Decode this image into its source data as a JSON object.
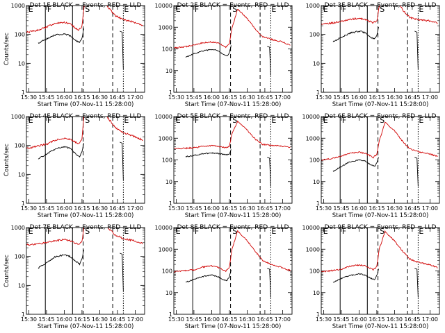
{
  "figure": {
    "layout": "3x3 grid",
    "background": "#ffffff"
  },
  "colors": {
    "events": "#000000",
    "lld": "#d00000",
    "axes": "#000000"
  },
  "chart_data": [
    {
      "type": "line",
      "title": "Det 1F BLACK = Events, RED = LLD",
      "xlabel": "Start Time (07-Nov-11 15:28:00)",
      "ylabel": "Counts/sec",
      "yscale": "log",
      "ylim": [
        1,
        1000
      ],
      "yticks": [
        "1",
        "10",
        "100",
        "1000"
      ],
      "xticks": [
        "15:30",
        "15:45",
        "16:00",
        "16:15",
        "16:30",
        "16:45",
        "17:00"
      ],
      "flags": [
        "E",
        "F",
        "S",
        "E"
      ]
    },
    {
      "type": "line",
      "title": "Det 2F BLACK = Events, RED = LLD",
      "xlabel": "Start Time (07-Nov-11 15:28:00)",
      "ylabel": "",
      "yscale": "log",
      "ylim": [
        1,
        10000
      ],
      "yticks": [
        "1",
        "10",
        "100",
        "1000",
        "10000"
      ],
      "xticks": [
        "15:30",
        "15:45",
        "16:00",
        "16:15",
        "16:30",
        "16:45",
        "17:00"
      ],
      "flags": [
        "E",
        "F",
        "S",
        "E"
      ]
    },
    {
      "type": "line",
      "title": "Det 3F BLACK = Events, RED = LLD",
      "xlabel": "Start Time (07-Nov-11 15:28:00)",
      "ylabel": "",
      "yscale": "log",
      "ylim": [
        1,
        1000
      ],
      "yticks": [
        "1",
        "10",
        "100",
        "1000"
      ],
      "xticks": [
        "15:30",
        "15:45",
        "16:00",
        "16:15",
        "16:30",
        "16:45",
        "17:00"
      ],
      "flags": [
        "E",
        "F",
        "S",
        "E"
      ]
    },
    {
      "type": "line",
      "title": "Det 4F BLACK = Events, RED = LLD",
      "xlabel": "Start Time (07-Nov-11 15:28:00)",
      "ylabel": "Counts/sec",
      "yscale": "log",
      "ylim": [
        1,
        1000
      ],
      "yticks": [
        "1",
        "10",
        "100",
        "1000"
      ],
      "xticks": [
        "15:30",
        "15:45",
        "16:00",
        "16:15",
        "16:30",
        "16:45",
        "17:00"
      ],
      "flags": [
        "E",
        "F",
        "S",
        "E"
      ]
    },
    {
      "type": "line",
      "title": "Det 5F BLACK = Events, RED = LLD",
      "xlabel": "Start Time (07-Nov-11 15:28:00)",
      "ylabel": "",
      "yscale": "log",
      "ylim": [
        1,
        10000
      ],
      "yticks": [
        "1",
        "10",
        "100",
        "1000",
        "10000"
      ],
      "xticks": [
        "15:30",
        "15:45",
        "16:00",
        "16:15",
        "16:30",
        "16:45",
        "17:00"
      ],
      "flags": [
        "E",
        "F",
        "S",
        "E"
      ]
    },
    {
      "type": "line",
      "title": "Det 6F BLACK = Events, RED = LLD",
      "xlabel": "Start Time (07-Nov-11 15:28:00)",
      "ylabel": "",
      "yscale": "log",
      "ylim": [
        1,
        10000
      ],
      "yticks": [
        "1",
        "10",
        "100",
        "1000",
        "10000"
      ],
      "xticks": [
        "15:30",
        "15:45",
        "16:00",
        "16:15",
        "16:30",
        "16:45",
        "17:00"
      ],
      "flags": [
        "E",
        "F",
        "S",
        "E"
      ]
    },
    {
      "type": "line",
      "title": "Det 7F BLACK = Events, RED = LLD",
      "xlabel": "Start Time (07-Nov-11 15:28:00)",
      "ylabel": "Counts/sec",
      "yscale": "log",
      "ylim": [
        1,
        1000
      ],
      "yticks": [
        "1",
        "10",
        "100",
        "1000"
      ],
      "xticks": [
        "15:30",
        "15:45",
        "16:00",
        "16:15",
        "16:30",
        "16:45",
        "17:00"
      ],
      "flags": [
        "E",
        "F",
        "S",
        "E"
      ]
    },
    {
      "type": "line",
      "title": "Det 8F BLACK = Events, RED = LLD",
      "xlabel": "Start Time (07-Nov-11 15:28:00)",
      "ylabel": "",
      "yscale": "log",
      "ylim": [
        1,
        10000
      ],
      "yticks": [
        "1",
        "10",
        "100",
        "1000",
        "10000"
      ],
      "xticks": [
        "15:30",
        "15:45",
        "16:00",
        "16:15",
        "16:30",
        "16:45",
        "17:00"
      ],
      "flags": [
        "E",
        "F",
        "S",
        "E"
      ]
    },
    {
      "type": "line",
      "title": "Det 9F BLACK = Events, RED = LLD",
      "xlabel": "Start Time (07-Nov-11 15:28:00)",
      "ylabel": "",
      "yscale": "log",
      "ylim": [
        1,
        10000
      ],
      "yticks": [
        "1",
        "10",
        "100",
        "1000",
        "10000"
      ],
      "xticks": [
        "15:30",
        "15:45",
        "16:00",
        "16:15",
        "16:30",
        "16:45",
        "17:00"
      ],
      "flags": [
        "E",
        "F",
        "S",
        "E"
      ]
    }
  ],
  "series_shapes": {
    "red": [
      [
        [
          "15:28",
          120
        ],
        [
          "15:35",
          130
        ],
        [
          "15:45",
          180
        ],
        [
          "15:52",
          240
        ],
        [
          "16:00",
          260
        ],
        [
          "16:05",
          230
        ],
        [
          "16:10",
          160
        ],
        [
          "16:12",
          140
        ],
        [
          "16:15",
          190
        ],
        [
          "16:17",
          1200
        ],
        [
          "16:22",
          8000
        ],
        [
          "16:30",
          3000
        ],
        [
          "16:37",
          900
        ],
        [
          "16:43",
          450
        ],
        [
          "16:50",
          330
        ],
        [
          "17:00",
          260
        ],
        [
          "17:07",
          190
        ]
      ],
      [
        [
          "15:28",
          110
        ],
        [
          "15:35",
          120
        ],
        [
          "15:45",
          150
        ],
        [
          "15:52",
          190
        ],
        [
          "16:00",
          210
        ],
        [
          "16:05",
          190
        ],
        [
          "16:10",
          140
        ],
        [
          "16:12",
          120
        ],
        [
          "16:15",
          170
        ],
        [
          "16:17",
          800
        ],
        [
          "16:22",
          7000
        ],
        [
          "16:30",
          2500
        ],
        [
          "16:37",
          800
        ],
        [
          "16:43",
          380
        ],
        [
          "16:50",
          280
        ],
        [
          "17:00",
          210
        ],
        [
          "17:07",
          140
        ]
      ],
      [
        [
          "15:28",
          230
        ],
        [
          "15:35",
          240
        ],
        [
          "15:45",
          280
        ],
        [
          "15:52",
          330
        ],
        [
          "16:00",
          360
        ],
        [
          "16:05",
          330
        ],
        [
          "16:10",
          270
        ],
        [
          "16:12",
          250
        ],
        [
          "16:15",
          300
        ],
        [
          "16:17",
          900
        ],
        [
          "16:22",
          6000
        ],
        [
          "16:30",
          2200
        ],
        [
          "16:37",
          700
        ],
        [
          "16:43",
          380
        ],
        [
          "16:50",
          330
        ],
        [
          "17:00",
          290
        ],
        [
          "17:07",
          240
        ]
      ],
      [
        [
          "15:28",
          80
        ],
        [
          "15:35",
          90
        ],
        [
          "15:45",
          110
        ],
        [
          "15:52",
          150
        ],
        [
          "16:00",
          180
        ],
        [
          "16:05",
          160
        ],
        [
          "16:10",
          130
        ],
        [
          "16:12",
          110
        ],
        [
          "16:15",
          170
        ],
        [
          "16:17",
          1500
        ],
        [
          "16:22",
          8000
        ],
        [
          "16:30",
          3200
        ],
        [
          "16:37",
          900
        ],
        [
          "16:43",
          420
        ],
        [
          "16:50",
          280
        ],
        [
          "17:00",
          200
        ],
        [
          "17:07",
          150
        ]
      ],
      [
        [
          "15:28",
          340
        ],
        [
          "15:35",
          340
        ],
        [
          "15:45",
          360
        ],
        [
          "15:52",
          420
        ],
        [
          "16:00",
          460
        ],
        [
          "16:05",
          420
        ],
        [
          "16:10",
          380
        ],
        [
          "16:12",
          360
        ],
        [
          "16:15",
          420
        ],
        [
          "16:17",
          1500
        ],
        [
          "16:22",
          6000
        ],
        [
          "16:30",
          2400
        ],
        [
          "16:37",
          900
        ],
        [
          "16:43",
          520
        ],
        [
          "16:50",
          470
        ],
        [
          "17:00",
          430
        ],
        [
          "17:07",
          380
        ]
      ],
      [
        [
          "15:28",
          100
        ],
        [
          "15:35",
          110
        ],
        [
          "15:45",
          150
        ],
        [
          "15:52",
          200
        ],
        [
          "16:00",
          230
        ],
        [
          "16:05",
          200
        ],
        [
          "16:10",
          150
        ],
        [
          "16:12",
          130
        ],
        [
          "16:15",
          180
        ],
        [
          "16:17",
          700
        ],
        [
          "16:22",
          5500
        ],
        [
          "16:30",
          2200
        ],
        [
          "16:37",
          700
        ],
        [
          "16:43",
          330
        ],
        [
          "16:50",
          240
        ],
        [
          "17:00",
          190
        ],
        [
          "17:07",
          140
        ]
      ],
      [
        [
          "15:28",
          260
        ],
        [
          "15:35",
          260
        ],
        [
          "15:45",
          300
        ],
        [
          "15:52",
          350
        ],
        [
          "16:00",
          380
        ],
        [
          "16:05",
          350
        ],
        [
          "16:10",
          280
        ],
        [
          "16:12",
          260
        ],
        [
          "16:15",
          320
        ],
        [
          "16:17",
          1500
        ],
        [
          "16:22",
          8000
        ],
        [
          "16:30",
          3000
        ],
        [
          "16:37",
          1000
        ],
        [
          "16:43",
          550
        ],
        [
          "16:50",
          420
        ],
        [
          "17:00",
          340
        ],
        [
          "17:07",
          280
        ]
      ],
      [
        [
          "15:28",
          90
        ],
        [
          "15:35",
          100
        ],
        [
          "15:45",
          110
        ],
        [
          "15:52",
          150
        ],
        [
          "16:00",
          170
        ],
        [
          "16:05",
          150
        ],
        [
          "16:10",
          110
        ],
        [
          "16:12",
          100
        ],
        [
          "16:15",
          150
        ],
        [
          "16:17",
          900
        ],
        [
          "16:22",
          7000
        ],
        [
          "16:30",
          2500
        ],
        [
          "16:37",
          800
        ],
        [
          "16:43",
          300
        ],
        [
          "16:50",
          200
        ],
        [
          "17:00",
          140
        ],
        [
          "17:07",
          100
        ]
      ],
      [
        [
          "15:28",
          90
        ],
        [
          "15:35",
          100
        ],
        [
          "15:45",
          120
        ],
        [
          "15:52",
          160
        ],
        [
          "16:00",
          190
        ],
        [
          "16:05",
          170
        ],
        [
          "16:10",
          130
        ],
        [
          "16:12",
          110
        ],
        [
          "16:15",
          160
        ],
        [
          "16:17",
          1000
        ],
        [
          "16:22",
          6500
        ],
        [
          "16:30",
          2400
        ],
        [
          "16:37",
          800
        ],
        [
          "16:43",
          350
        ],
        [
          "16:50",
          250
        ],
        [
          "17:00",
          190
        ],
        [
          "17:07",
          140
        ]
      ]
    ],
    "black": [
      [
        [
          "15:38",
          50
        ],
        [
          "15:45",
          70
        ],
        [
          "15:52",
          95
        ],
        [
          "16:00",
          105
        ],
        [
          "16:05",
          90
        ],
        [
          "16:10",
          60
        ],
        [
          "16:13",
          52
        ],
        [
          "16:15",
          75
        ],
        [
          "16:17",
          200
        ]
      ],
      [
        [
          "15:38",
          40
        ],
        [
          "15:45",
          60
        ],
        [
          "15:52",
          80
        ],
        [
          "16:00",
          95
        ],
        [
          "16:05",
          85
        ],
        [
          "16:10",
          55
        ],
        [
          "16:13",
          45
        ],
        [
          "16:15",
          70
        ],
        [
          "16:17",
          180
        ]
      ],
      [
        [
          "15:38",
          55
        ],
        [
          "15:45",
          80
        ],
        [
          "15:52",
          110
        ],
        [
          "16:00",
          130
        ],
        [
          "16:05",
          115
        ],
        [
          "16:10",
          80
        ],
        [
          "16:13",
          70
        ],
        [
          "16:15",
          95
        ],
        [
          "16:17",
          220
        ]
      ],
      [
        [
          "15:38",
          35
        ],
        [
          "15:45",
          50
        ],
        [
          "15:52",
          75
        ],
        [
          "16:00",
          90
        ],
        [
          "16:05",
          80
        ],
        [
          "16:10",
          50
        ],
        [
          "16:13",
          40
        ],
        [
          "16:15",
          60
        ],
        [
          "16:17",
          150
        ]
      ],
      [
        [
          "15:38",
          140
        ],
        [
          "15:45",
          160
        ],
        [
          "15:52",
          190
        ],
        [
          "16:00",
          210
        ],
        [
          "16:05",
          200
        ],
        [
          "16:10",
          180
        ],
        [
          "16:13",
          170
        ],
        [
          "16:15",
          190
        ],
        [
          "16:17",
          350
        ]
      ],
      [
        [
          "15:38",
          30
        ],
        [
          "15:45",
          50
        ],
        [
          "15:52",
          80
        ],
        [
          "16:00",
          100
        ],
        [
          "16:05",
          90
        ],
        [
          "16:10",
          60
        ],
        [
          "16:13",
          50
        ],
        [
          "16:15",
          70
        ],
        [
          "16:17",
          160
        ]
      ],
      [
        [
          "15:38",
          40
        ],
        [
          "15:45",
          60
        ],
        [
          "15:52",
          95
        ],
        [
          "16:00",
          115
        ],
        [
          "16:05",
          100
        ],
        [
          "16:10",
          65
        ],
        [
          "16:13",
          55
        ],
        [
          "16:15",
          80
        ],
        [
          "16:17",
          220
        ]
      ],
      [
        [
          "15:38",
          30
        ],
        [
          "15:45",
          40
        ],
        [
          "15:52",
          55
        ],
        [
          "16:00",
          65
        ],
        [
          "16:05",
          55
        ],
        [
          "16:10",
          40
        ],
        [
          "16:13",
          35
        ],
        [
          "16:15",
          55
        ],
        [
          "16:17",
          140
        ]
      ],
      [
        [
          "15:38",
          30
        ],
        [
          "15:45",
          45
        ],
        [
          "15:52",
          60
        ],
        [
          "16:00",
          75
        ],
        [
          "16:05",
          65
        ],
        [
          "16:10",
          45
        ],
        [
          "16:13",
          40
        ],
        [
          "16:15",
          60
        ],
        [
          "16:17",
          150
        ]
      ]
    ],
    "black_tail": [
      [
        "16:47",
        130
      ],
      [
        "16:49",
        120
      ],
      [
        "16:50",
        6
      ]
    ]
  }
}
